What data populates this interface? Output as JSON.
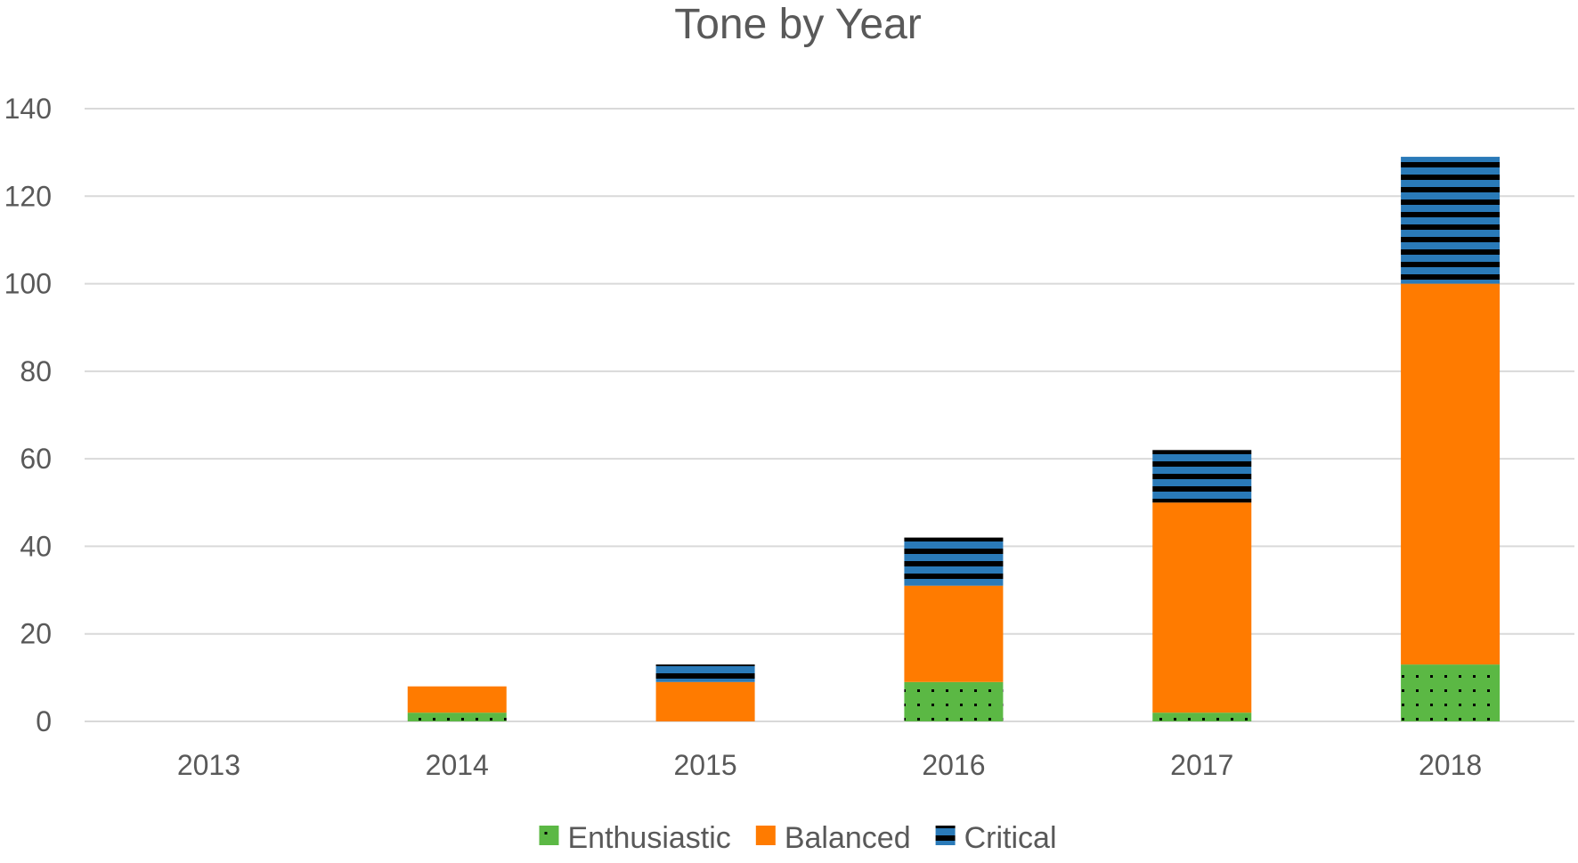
{
  "chart_data": {
    "type": "bar",
    "stacked": true,
    "title": "Tone by Year",
    "xlabel": "",
    "ylabel": "",
    "categories": [
      "2013",
      "2014",
      "2015",
      "2016",
      "2017",
      "2018"
    ],
    "ylim": [
      0,
      140
    ],
    "yticks": [
      0,
      20,
      40,
      60,
      80,
      100,
      120,
      140
    ],
    "grid": true,
    "legend_position": "bottom",
    "series": [
      {
        "name": "Enthusiastic",
        "color": "#5bb844",
        "pattern": "dots",
        "values": [
          0,
          2,
          0,
          9,
          2,
          13
        ]
      },
      {
        "name": "Balanced",
        "color": "#ff7b00",
        "pattern": "solid",
        "values": [
          0,
          6,
          9,
          22,
          48,
          87
        ]
      },
      {
        "name": "Critical",
        "color": "#2a7ab8",
        "pattern": "horizontal-stripes",
        "values": [
          0,
          0,
          4,
          11,
          12,
          29
        ]
      }
    ]
  }
}
